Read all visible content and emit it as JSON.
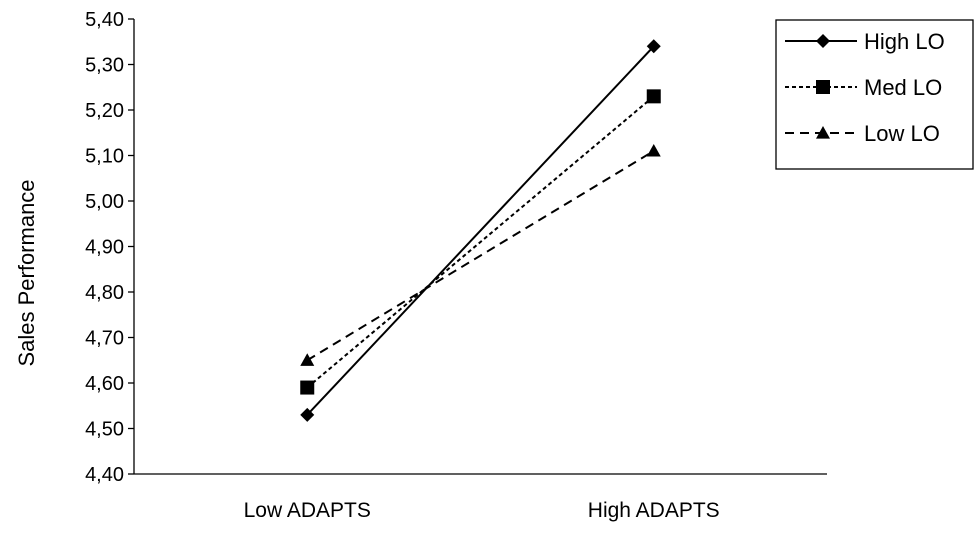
{
  "chart_data": {
    "type": "line",
    "title": "",
    "xlabel": "",
    "ylabel": "Sales Performance",
    "categories": [
      "Low  ADAPTS",
      "High ADAPTS"
    ],
    "ylim": [
      4.4,
      5.4
    ],
    "yticks": [
      "4,40",
      "4,50",
      "4,60",
      "4,70",
      "4,80",
      "4,90",
      "5,00",
      "5,10",
      "5,20",
      "5,30",
      "5,40"
    ],
    "grid": false,
    "legend_position": "top-right",
    "series": [
      {
        "name": "High LO",
        "values": [
          4.53,
          5.34
        ],
        "marker": "diamond",
        "dash": "solid",
        "color": "#000000"
      },
      {
        "name": "Med LO",
        "values": [
          4.59,
          5.23
        ],
        "marker": "square",
        "dash": "dotted",
        "color": "#000000"
      },
      {
        "name": "Low LO",
        "values": [
          4.65,
          5.11
        ],
        "marker": "triangle",
        "dash": "dashed",
        "color": "#000000"
      }
    ]
  }
}
